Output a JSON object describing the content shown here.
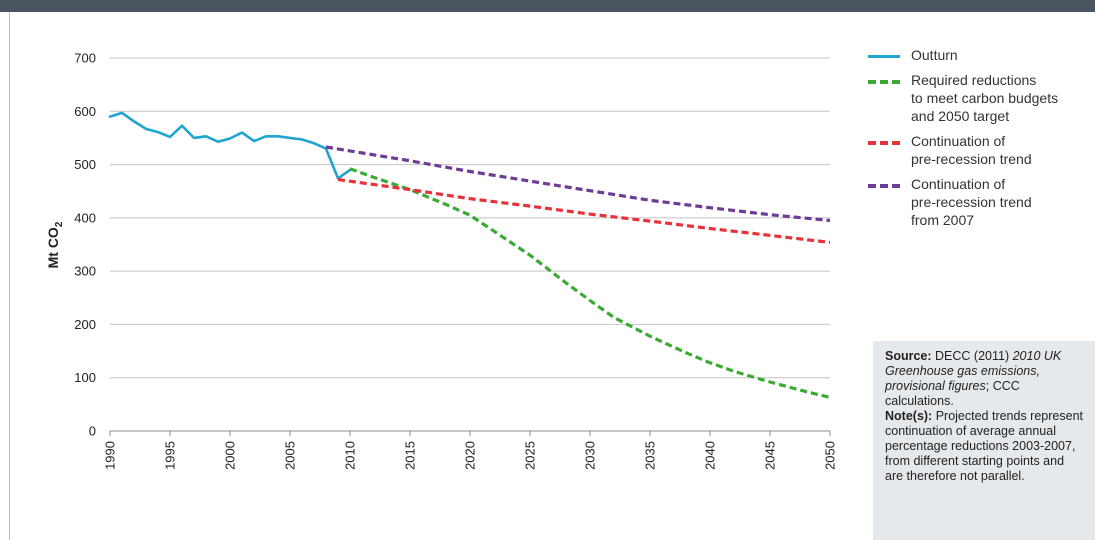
{
  "chart_data": {
    "type": "line",
    "ylabel": "Mt CO",
    "ylabel_sub": "2",
    "ylim": [
      0,
      700
    ],
    "yticks": [
      0,
      100,
      200,
      300,
      400,
      500,
      600,
      700
    ],
    "xlim": [
      1990,
      2050
    ],
    "xticks": [
      1990,
      1995,
      2000,
      2005,
      2010,
      2015,
      2020,
      2025,
      2030,
      2035,
      2040,
      2045,
      2050
    ],
    "grid": true,
    "legend_position": "right",
    "series": [
      {
        "name": "Outturn",
        "color": "#1fa5d0",
        "style": "solid",
        "points": [
          [
            1990,
            590
          ],
          [
            1991,
            597
          ],
          [
            1992,
            581
          ],
          [
            1993,
            567
          ],
          [
            1994,
            561
          ],
          [
            1995,
            552
          ],
          [
            1996,
            573
          ],
          [
            1997,
            550
          ],
          [
            1998,
            553
          ],
          [
            1999,
            543
          ],
          [
            2000,
            549
          ],
          [
            2001,
            560
          ],
          [
            2002,
            544
          ],
          [
            2003,
            553
          ],
          [
            2004,
            553
          ],
          [
            2005,
            550
          ],
          [
            2006,
            547
          ],
          [
            2007,
            540
          ],
          [
            2008,
            530
          ],
          [
            2009,
            474
          ],
          [
            2010,
            490
          ]
        ]
      },
      {
        "name": "Required reductions\nto meet carbon budgets\nand 2050 target",
        "color": "#3aaa35",
        "style": "dashed",
        "points": [
          [
            2010,
            492
          ],
          [
            2012,
            476
          ],
          [
            2015,
            453
          ],
          [
            2018,
            425
          ],
          [
            2020,
            405
          ],
          [
            2022,
            375
          ],
          [
            2025,
            330
          ],
          [
            2028,
            278
          ],
          [
            2030,
            245
          ],
          [
            2032,
            213
          ],
          [
            2035,
            178
          ],
          [
            2038,
            147
          ],
          [
            2040,
            128
          ],
          [
            2042,
            112
          ],
          [
            2045,
            92
          ],
          [
            2048,
            74
          ],
          [
            2050,
            63
          ]
        ]
      },
      {
        "name": "Continuation of\npre-recession trend",
        "color": "#e8323a",
        "style": "dashed",
        "points": [
          [
            2009,
            472
          ],
          [
            2015,
            453
          ],
          [
            2020,
            436
          ],
          [
            2025,
            422
          ],
          [
            2030,
            407
          ],
          [
            2035,
            394
          ],
          [
            2040,
            380
          ],
          [
            2045,
            367
          ],
          [
            2050,
            354
          ]
        ]
      },
      {
        "name": "Continuation of\npre-recession trend\nfrom 2007",
        "color": "#6e3b96",
        "style": "dashed",
        "points": [
          [
            2008,
            533
          ],
          [
            2015,
            507
          ],
          [
            2020,
            487
          ],
          [
            2025,
            469
          ],
          [
            2030,
            451
          ],
          [
            2035,
            433
          ],
          [
            2040,
            419
          ],
          [
            2045,
            406
          ],
          [
            2050,
            395
          ]
        ]
      }
    ]
  },
  "note_box": {
    "source_label": "Source:",
    "source_text_1": " DECC (2011) ",
    "source_italic": "2010 UK Greenhouse gas emissions, provisional figures",
    "source_text_2": "; CCC calculations.",
    "note_label": "Note(s):",
    "note_text": " Projected trends represent continuation of average annual percentage reductions 2003-2007, from different starting points and are therefore not parallel."
  }
}
